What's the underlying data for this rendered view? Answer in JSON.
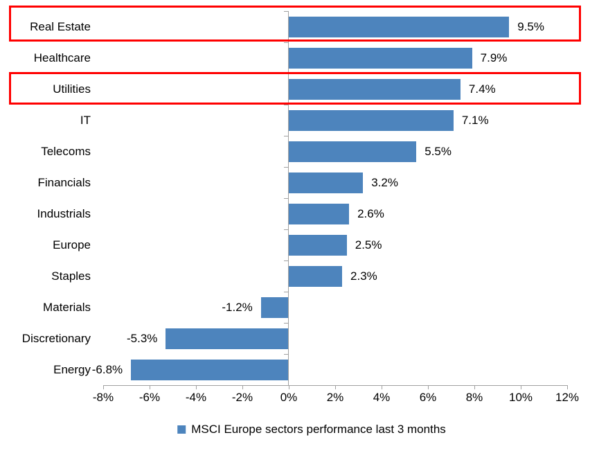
{
  "chart_data": {
    "type": "bar",
    "orientation": "horizontal",
    "title": "",
    "xlabel": "",
    "ylabel": "",
    "categories": [
      "Real Estate",
      "Healthcare",
      "Utilities",
      "IT",
      "Telecoms",
      "Financials",
      "Industrials",
      "Europe",
      "Staples",
      "Materials",
      "Discretionary",
      "Energy"
    ],
    "values": [
      9.5,
      7.9,
      7.4,
      7.1,
      5.5,
      3.2,
      2.6,
      2.5,
      2.3,
      -1.2,
      -5.3,
      -6.8
    ],
    "data_labels": [
      "9.5%",
      "7.9%",
      "7.4%",
      "7.1%",
      "5.5%",
      "3.2%",
      "2.6%",
      "2.5%",
      "2.3%",
      "-1.2%",
      "-5.3%",
      "-6.8%"
    ],
    "series_name": "MSCI Europe sectors performance last 3 months",
    "xlim": [
      -8,
      12
    ],
    "x_tick_step": 2,
    "x_ticks": [
      "-8%",
      "-6%",
      "-4%",
      "-2%",
      "0%",
      "2%",
      "4%",
      "6%",
      "8%",
      "10%",
      "12%"
    ],
    "grid": false,
    "legend_position": "bottom",
    "bar_color": "#4D84BD",
    "axis_color": "#A0A0A0",
    "label_color": "#000000",
    "highlight_color": "#FF0000",
    "highlighted_categories": [
      "Real Estate",
      "Utilities"
    ]
  },
  "legend": {
    "label": "MSCI Europe sectors performance last 3 months",
    "marker": "square-icon",
    "marker_color": "#4D84BD"
  }
}
